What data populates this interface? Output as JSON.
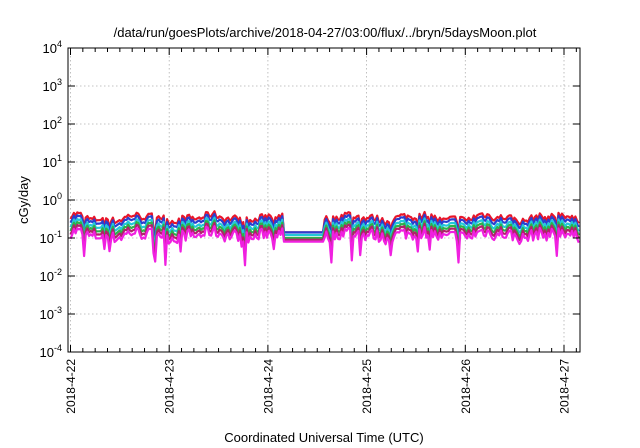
{
  "chart_data": {
    "type": "line",
    "title": "/data/run/goesPlots/archive/2018-04-27/03:00/flux/../bryn/5daysMoon.plot",
    "xlabel": "Coordinated Universal Time (UTC)",
    "ylabel": "cGy/day",
    "y_scale": "log",
    "ylim": [
      0.0001,
      10000
    ],
    "xlim_days": [
      -0.0,
      5.15
    ],
    "grid": true,
    "legend": "none",
    "y_ticks": [
      {
        "base": "10",
        "exp": "-4",
        "value": 0.0001
      },
      {
        "base": "10",
        "exp": "-3",
        "value": 0.001
      },
      {
        "base": "10",
        "exp": "-2",
        "value": 0.01
      },
      {
        "base": "10",
        "exp": "-1",
        "value": 0.1
      },
      {
        "base": "10",
        "exp": "0",
        "value": 1
      },
      {
        "base": "10",
        "exp": "1",
        "value": 10
      },
      {
        "base": "10",
        "exp": "2",
        "value": 100
      },
      {
        "base": "10",
        "exp": "3",
        "value": 1000
      },
      {
        "base": "10",
        "exp": "4",
        "value": 10000
      }
    ],
    "x_ticks": [
      "2018-4-22",
      "2018-4-23",
      "2018-4-24",
      "2018-4-25",
      "2018-4-26",
      "2018-4-27"
    ],
    "series": [
      {
        "color": "#e8152a",
        "base": 0.34
      },
      {
        "color": "#2a3fd0",
        "base": 0.28
      },
      {
        "color": "#22c8d8",
        "base": 0.22
      },
      {
        "color": "#2cb24a",
        "base": 0.18
      },
      {
        "color": "#b0226a",
        "base": 0.15
      },
      {
        "color": "#f020e0",
        "base": 0.12
      }
    ],
    "gap": {
      "start": "2018-4-24 03:00",
      "end": "2018-4-24 14:00",
      "values": [
        0.14,
        0.14,
        0.12,
        0.1,
        0.09,
        0.08
      ]
    }
  }
}
